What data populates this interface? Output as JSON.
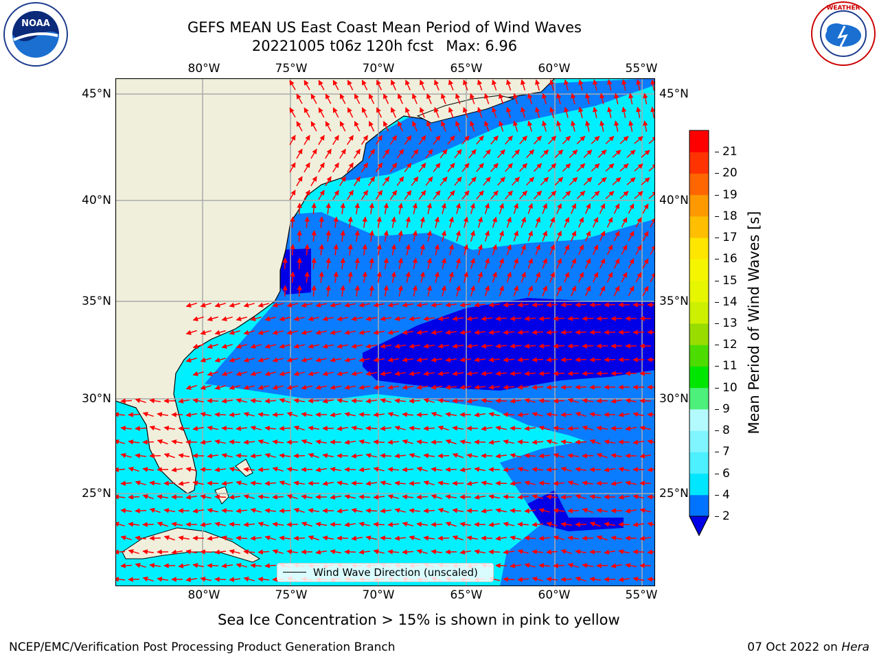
{
  "header": {
    "title_line1": "GEFS MEAN US East Coast Mean Period of Wind Waves",
    "title_line2": "20221005 t06z 120h fcst",
    "max_label": "Max: 6.96"
  },
  "logos": {
    "left": {
      "name": "NOAA",
      "ring_text": "NATIONAL OCEANIC AND ATMOSPHERIC ADMINISTRATION"
    },
    "right": {
      "name": "National Weather Service",
      "ring_text": "NATIONAL WEATHER SERVICE"
    }
  },
  "axes": {
    "lon_labels": [
      "80°W",
      "75°W",
      "70°W",
      "65°W",
      "60°W",
      "55°W"
    ],
    "lat_labels": [
      "45°N",
      "40°N",
      "35°N",
      "30°N",
      "25°N"
    ]
  },
  "legend": {
    "label": "Wind Wave Direction (unscaled)"
  },
  "colorbar": {
    "title": "Mean Period of Wind Waves [s]",
    "ticks": [
      "2",
      "4",
      "6",
      "7",
      "8",
      "9",
      "10",
      "11",
      "12",
      "13",
      "14",
      "15",
      "16",
      "17",
      "18",
      "19",
      "20",
      "21"
    ],
    "colors": [
      "#0073ff",
      "#00e6ff",
      "#4df0ff",
      "#80f5ff",
      "#b3faff",
      "#4df07a",
      "#00e600",
      "#4ddc00",
      "#99dc00",
      "#ccf000",
      "#e6f500",
      "#f5f500",
      "#ffe600",
      "#ffbf00",
      "#ff9900",
      "#ff6600",
      "#ff3300",
      "#ff0000"
    ],
    "extend_color": "#0000e6"
  },
  "map_colors": {
    "land": "#efefdc",
    "ocean_light": "#00f0ff",
    "ocean_mid": "#0a7cff",
    "ocean_dark": "#0000e6",
    "arrow": "#ff0000",
    "grid": "#aaaaaa"
  },
  "note": "Sea Ice Concentration > 15% is shown in pink to yellow",
  "footer": {
    "left": "NCEP/EMC/Verification Post Processing Product Generation Branch",
    "date": "07 Oct 2022 on",
    "host": "Hera"
  }
}
